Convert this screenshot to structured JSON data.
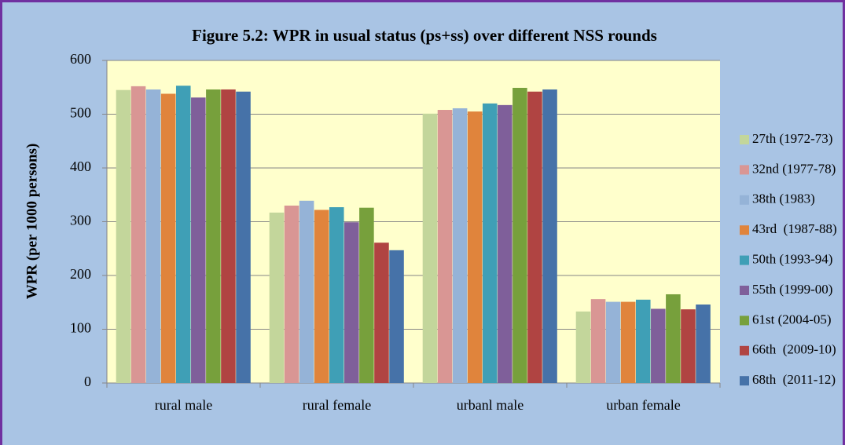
{
  "chart_data": {
    "type": "bar",
    "title": "Figure 5.2: WPR in usual status (ps+ss) over different NSS rounds",
    "y_label": "WPR (per 1000 persons)",
    "categories": [
      "rural male",
      "rural female",
      "urbanl male",
      "urban female"
    ],
    "series": [
      {
        "name": "27th (1972-73)",
        "color": "#c3d69b",
        "values": [
          545,
          317,
          501,
          133
        ]
      },
      {
        "name": "32nd (1977-78)",
        "color": "#d99694",
        "values": [
          552,
          330,
          508,
          156
        ]
      },
      {
        "name": "38th (1983)",
        "color": "#95b3d7",
        "values": [
          546,
          339,
          511,
          151
        ]
      },
      {
        "name": "43rd  (1987-88)",
        "color": "#e0843c",
        "values": [
          538,
          322,
          505,
          151
        ]
      },
      {
        "name": "50th (1993-94)",
        "color": "#3f9fb6",
        "values": [
          553,
          327,
          520,
          155
        ]
      },
      {
        "name": "55th (1999-00)",
        "color": "#7f5f9a",
        "values": [
          531,
          299,
          517,
          138
        ]
      },
      {
        "name": "61st (2004-05)",
        "color": "#77a03c",
        "values": [
          546,
          326,
          549,
          165
        ]
      },
      {
        "name": "66th  (2009-10)",
        "color": "#b04442",
        "values": [
          546,
          261,
          542,
          137
        ]
      },
      {
        "name": "68th  (2011-12)",
        "color": "#4672a8",
        "values": [
          542,
          247,
          546,
          146
        ]
      }
    ],
    "ylim": [
      0,
      600
    ],
    "yticks": [
      0,
      100,
      200,
      300,
      400,
      500,
      600
    ],
    "grid": true,
    "legend": "right"
  }
}
